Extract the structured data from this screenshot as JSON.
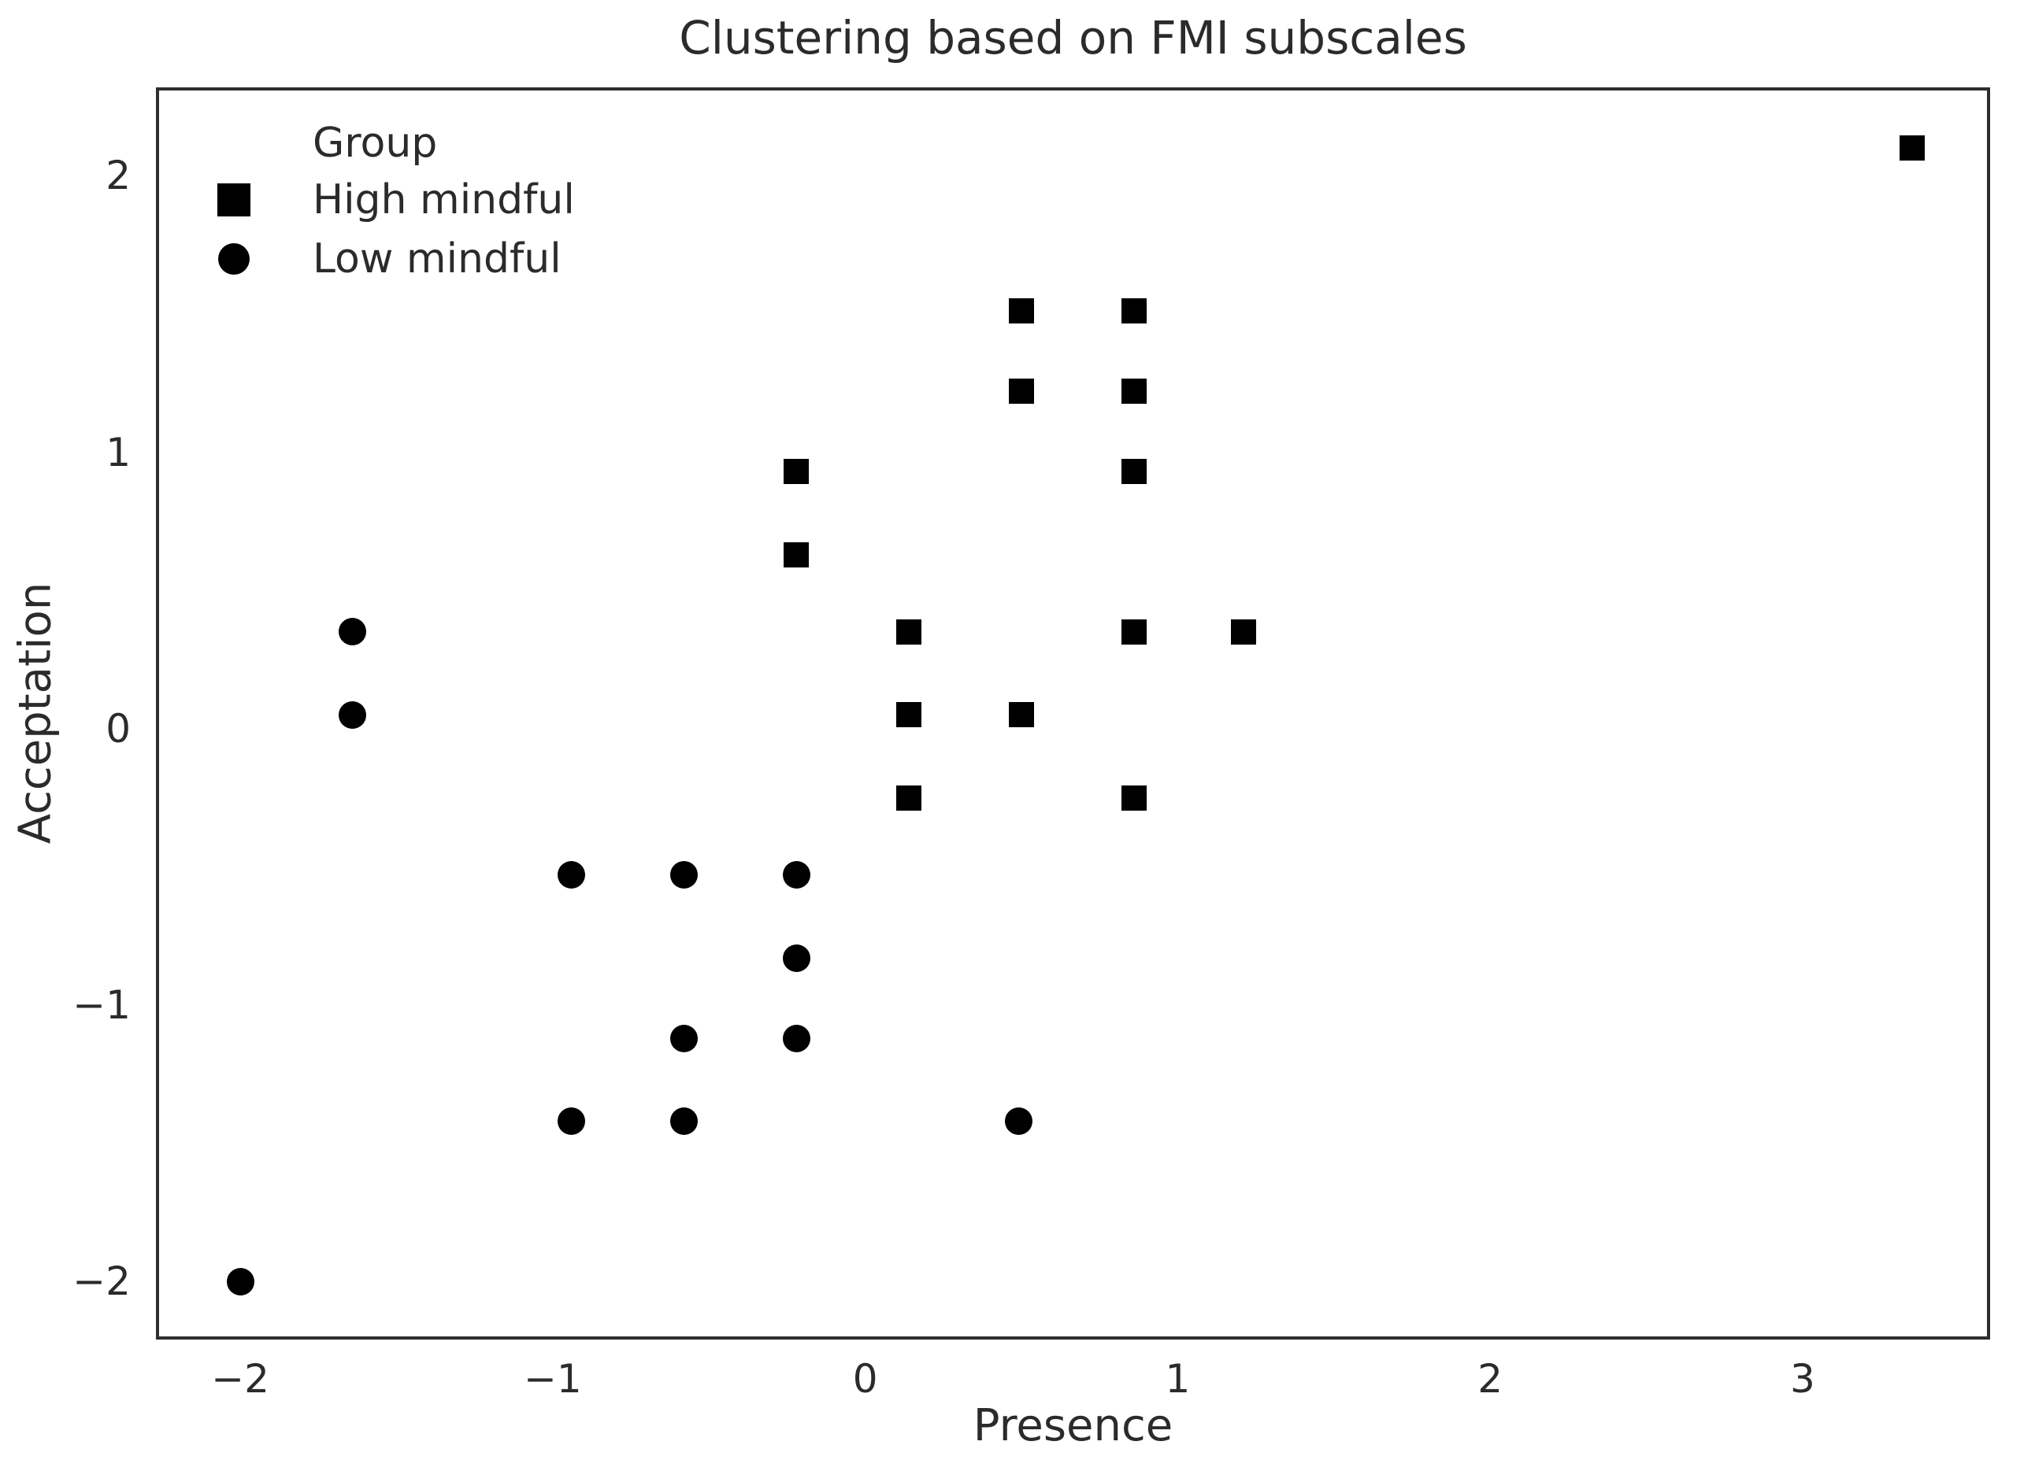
{
  "chart_data": {
    "type": "scatter",
    "title": "Clustering based on FMI subscales",
    "xlabel": "Presence",
    "ylabel": "Acceptation",
    "xlim": [
      -2.27,
      3.6
    ],
    "ylim": [
      -2.21,
      2.32
    ],
    "grid": false,
    "background_color": "#ffffff",
    "marker_color": "#000000",
    "spine_color": "#2e2e2e",
    "text_color": "#2b2b2b",
    "xticks": [
      {
        "value": -2,
        "label": "−2"
      },
      {
        "value": -1,
        "label": "−1"
      },
      {
        "value": 0,
        "label": "0"
      },
      {
        "value": 1,
        "label": "1"
      },
      {
        "value": 2,
        "label": "2"
      },
      {
        "value": 3,
        "label": "3"
      }
    ],
    "yticks": [
      {
        "value": 2,
        "label": "2"
      },
      {
        "value": 1,
        "label": "1"
      },
      {
        "value": 0,
        "label": "0"
      },
      {
        "value": -1,
        "label": "−1"
      },
      {
        "value": -2,
        "label": "−2"
      }
    ],
    "legend": {
      "title": "Group",
      "position": "upper-left",
      "entries": [
        {
          "label": "High mindful",
          "marker": "square"
        },
        {
          "label": "Low mindful",
          "marker": "circle"
        }
      ]
    },
    "series": [
      {
        "name": "High mindful",
        "marker": "square",
        "points": [
          [
            3.35,
            2.1
          ],
          [
            0.5,
            1.51
          ],
          [
            0.86,
            1.51
          ],
          [
            0.5,
            1.22
          ],
          [
            0.86,
            1.22
          ],
          [
            -0.22,
            0.93
          ],
          [
            0.86,
            0.93
          ],
          [
            -0.22,
            0.63
          ],
          [
            0.14,
            0.35
          ],
          [
            0.86,
            0.35
          ],
          [
            1.21,
            0.35
          ],
          [
            0.14,
            0.05
          ],
          [
            0.5,
            0.05
          ],
          [
            0.14,
            -0.25
          ],
          [
            0.86,
            -0.25
          ]
        ]
      },
      {
        "name": "Low mindful",
        "marker": "circle",
        "points": [
          [
            -1.64,
            0.35
          ],
          [
            -1.64,
            0.05
          ],
          [
            -0.94,
            -0.53
          ],
          [
            -0.58,
            -0.53
          ],
          [
            -0.22,
            -0.53
          ],
          [
            -0.22,
            -0.83
          ],
          [
            -0.58,
            -1.12
          ],
          [
            -0.22,
            -1.12
          ],
          [
            -0.94,
            -1.42
          ],
          [
            -0.58,
            -1.42
          ],
          [
            0.49,
            -1.42
          ],
          [
            -2.0,
            -2.0
          ]
        ]
      }
    ]
  }
}
